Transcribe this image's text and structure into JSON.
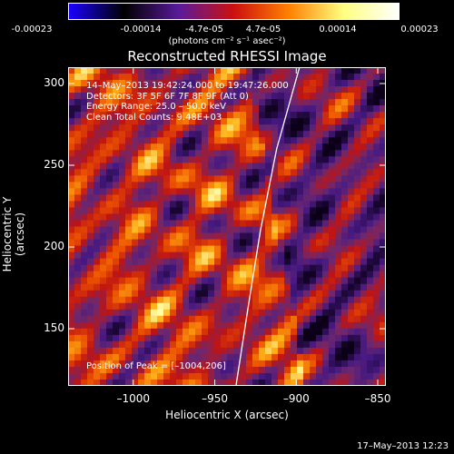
{
  "colorbar": {
    "ticks": [
      "-0.00023",
      "-0.00014",
      "-4.7e-05",
      "4.7e-05",
      "0.00014",
      "0.00023"
    ],
    "units": "(photons cm⁻² s⁻¹ asec⁻²)",
    "colors": [
      "#1a00ff",
      "#000000",
      "#5a1a9a",
      "#cc1010",
      "#ff8000",
      "#ffff80",
      "#ffffff"
    ]
  },
  "title": "Reconstructed RHESSI Image",
  "info_lines": [
    "14–May–2013 19:42:24.000 to 19:47:26.000",
    "Detectors: 3F 5F 6F 7F 8F 9F (Att 0)",
    "Energy Range: 25.0 – 50.0 keV",
    "Clean    Total Counts: 9.48E+03"
  ],
  "peak_label": "Position of Peak = [–1004,206]",
  "timestamp": "17–May–2013 12:23",
  "chart_data": {
    "type": "heatmap",
    "title": "Reconstructed RHESSI Image",
    "xlabel": "Heliocentric X (arcsec)",
    "ylabel": "Heliocentric Y (arcsec)",
    "xlim": [
      -1040,
      -845
    ],
    "ylim": [
      115,
      310
    ],
    "x_ticks": [
      -1000,
      -950,
      -900,
      -850
    ],
    "x_tick_labels": [
      "–1000",
      "–950",
      "–900",
      "–850"
    ],
    "y_ticks": [
      150,
      200,
      250,
      300
    ],
    "y_tick_labels": [
      "150",
      "200",
      "250",
      "300"
    ],
    "value_range": [
      -0.00023,
      0.00023
    ],
    "peak_position": [
      -1004,
      206
    ],
    "limb_curve": [
      [
        -937,
        115
      ],
      [
        -930,
        160
      ],
      [
        -922,
        210
      ],
      [
        -912,
        260
      ],
      [
        -898,
        310
      ]
    ],
    "grid": false
  }
}
